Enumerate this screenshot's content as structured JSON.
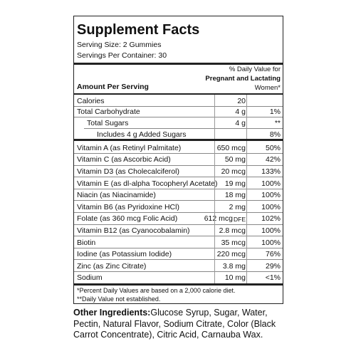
{
  "header": {
    "title": "Supplement Facts",
    "serving_size": "Serving Size: 2 Gummies",
    "servings_per_container": "Servings Per Container: 30",
    "dv_heading": [
      "% Daily Value for",
      "Pregnant and Lactating",
      "Women*"
    ],
    "amount_heading": "Amount Per Serving"
  },
  "macro_rows": [
    {
      "name": "Calories",
      "amount": "20",
      "indent": 0
    },
    {
      "name": "Total Carbohydrate",
      "amount": "4 g",
      "dv": "1%",
      "indent": 0
    },
    {
      "name": "Total Sugars",
      "amount": "4 g",
      "dv": "**",
      "indent": 1
    },
    {
      "name": "Includes 4 g Added Sugars",
      "dv": "8%",
      "indent": 2
    }
  ],
  "vitamin_rows": [
    {
      "name": "Vitamin A (as Retinyl Palmitate)",
      "amount": "650 mcg",
      "dv": "50%"
    },
    {
      "name": "Vitamin C (as Ascorbic Acid)",
      "amount": "50 mg",
      "dv": "42%"
    },
    {
      "name": "Vitamin D3 (as Cholecalciferol)",
      "amount": "20 mcg",
      "dv": "133%"
    },
    {
      "name": "Vitamin E (as dl-alpha Tocopheryl Acetate)",
      "amount": "19 mg",
      "dv": "100%"
    },
    {
      "name": "Niacin (as Niacinamide)",
      "amount": "18 mg",
      "dv": "100%"
    },
    {
      "name": "Vitamin B6 (as Pyridoxine HCl)",
      "amount": "2 mg",
      "dv": "100%"
    },
    {
      "name": "Folate (as 360 mcg Folic Acid)",
      "amount": "612 mcg",
      "note": "DFE",
      "dv": "102%"
    },
    {
      "name": "Vitamin B12 (as Cyanocobalamin)",
      "amount": "2.8 mcg",
      "dv": "100%"
    },
    {
      "name": "Biotin",
      "amount": "35 mcg",
      "dv": "100%"
    },
    {
      "name": "Iodine (as Potassium Iodide)",
      "amount": "220 mcg",
      "dv": "76%"
    },
    {
      "name": "Zinc (as Zinc Citrate)",
      "amount": "3.8 mg",
      "dv": "29%"
    },
    {
      "name": "Sodium",
      "amount": "10 mg",
      "dv": "<1%"
    }
  ],
  "footnotes": [
    "*Percent Daily Values are based on a 2,000 calorie diet.",
    "**Daily Value not established."
  ],
  "other_ingredients": {
    "label": "Other Ingredients:",
    "text": "Glucose Syrup, Sugar, Water, Pectin, Natural Flavor, Sodium Citrate, Color (Black Carrot Concentrate), Citric Acid, Carnauba Wax."
  }
}
